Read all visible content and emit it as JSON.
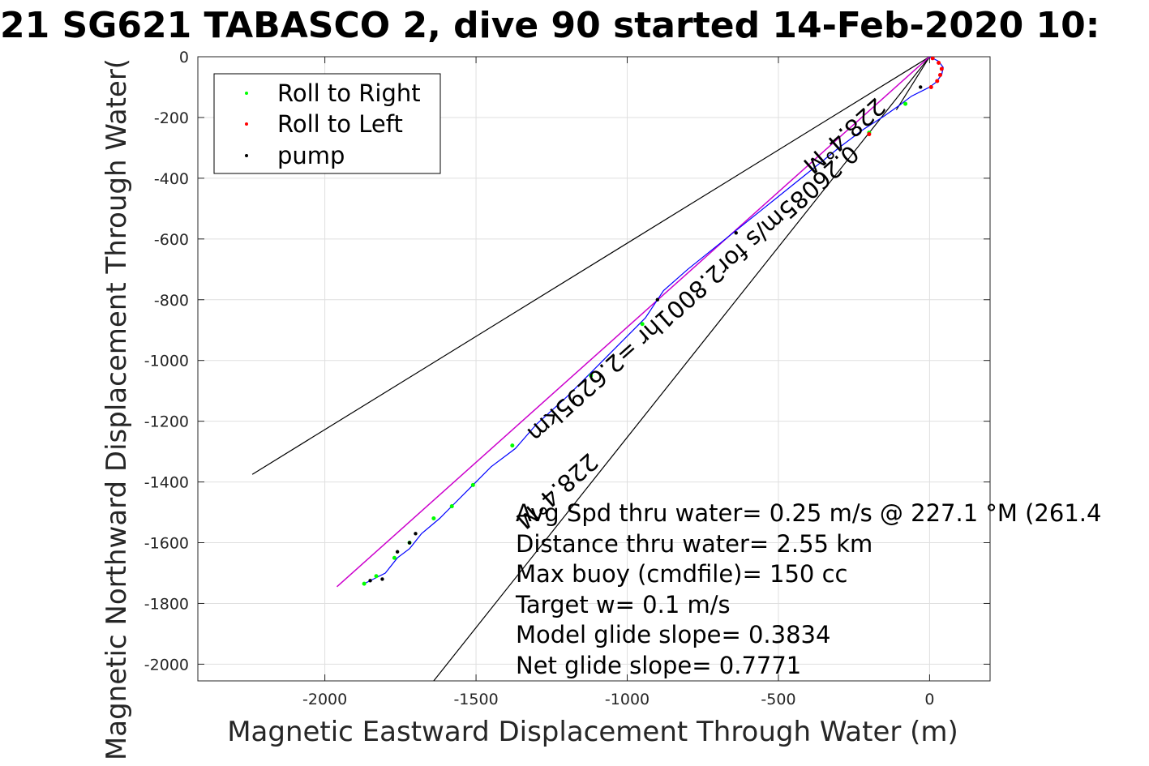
{
  "chart_data": {
    "type": "line",
    "title": "21 SG621 TABASCO 2, dive 90 started 14-Feb-2020 10:",
    "xlabel": "Magnetic Eastward Displacement Through Water (m)",
    "ylabel": "Magnetic Northward Displacement Through Water(",
    "xlim": [
      -2420,
      200
    ],
    "ylim": [
      -2055,
      0
    ],
    "xticks": [
      -2000,
      -1500,
      -1000,
      -500,
      0
    ],
    "yticks": [
      0,
      -200,
      -400,
      -600,
      -800,
      -1000,
      -1200,
      -1400,
      -1600,
      -1800,
      -2000
    ],
    "grid": true,
    "legend": {
      "placement": "top-left",
      "entries": [
        {
          "label": "Roll to Right",
          "color": "#00ff00"
        },
        {
          "label": "Roll to Left",
          "color": "#ff0000"
        },
        {
          "label": "pump",
          "color": "#000000"
        }
      ]
    },
    "track": {
      "color": "#0000ff",
      "points": [
        [
          0,
          0
        ],
        [
          30,
          -15
        ],
        [
          45,
          -35
        ],
        [
          40,
          -60
        ],
        [
          20,
          -85
        ],
        [
          0,
          -100
        ],
        [
          -60,
          -130
        ],
        [
          -100,
          -160
        ],
        [
          -150,
          -195
        ],
        [
          -220,
          -240
        ],
        [
          -300,
          -300
        ],
        [
          -400,
          -380
        ],
        [
          -500,
          -460
        ],
        [
          -600,
          -540
        ],
        [
          -700,
          -620
        ],
        [
          -800,
          -700
        ],
        [
          -880,
          -770
        ],
        [
          -940,
          -860
        ],
        [
          -1000,
          -920
        ],
        [
          -1100,
          -1020
        ],
        [
          -1200,
          -1120
        ],
        [
          -1300,
          -1210
        ],
        [
          -1370,
          -1290
        ],
        [
          -1450,
          -1350
        ],
        [
          -1520,
          -1420
        ],
        [
          -1580,
          -1480
        ],
        [
          -1620,
          -1520
        ],
        [
          -1680,
          -1570
        ],
        [
          -1720,
          -1620
        ],
        [
          -1760,
          -1650
        ],
        [
          -1800,
          -1700
        ],
        [
          -1840,
          -1720
        ],
        [
          -1870,
          -1735
        ]
      ]
    },
    "roll_right": [
      [
        -80,
        -155
      ],
      [
        -200,
        -250
      ],
      [
        -950,
        -880
      ],
      [
        -1120,
        -1050
      ],
      [
        -1380,
        -1280
      ],
      [
        -1510,
        -1410
      ],
      [
        -1580,
        -1480
      ],
      [
        -1640,
        -1520
      ],
      [
        -1720,
        -1600
      ],
      [
        -1770,
        -1650
      ],
      [
        -1830,
        -1710
      ],
      [
        -1870,
        -1735
      ]
    ],
    "roll_left": [
      [
        10,
        -5
      ],
      [
        30,
        -20
      ],
      [
        40,
        -40
      ],
      [
        35,
        -60
      ],
      [
        25,
        -80
      ],
      [
        5,
        -100
      ],
      [
        -200,
        -255
      ]
    ],
    "pump": [
      [
        -30,
        -100
      ],
      [
        -640,
        -580
      ],
      [
        -900,
        -800
      ],
      [
        -1700,
        -1570
      ],
      [
        -1720,
        -1600
      ],
      [
        -1760,
        -1630
      ],
      [
        -1810,
        -1720
      ],
      [
        -1850,
        -1725
      ]
    ],
    "model_track": {
      "color": "#cc00cc",
      "from": [
        0,
        0
      ],
      "to": [
        -1960,
        -1745
      ]
    },
    "bounding_lines": [
      {
        "from": [
          0,
          0
        ],
        "to": [
          -2240,
          -1375
        ]
      },
      {
        "from": [
          0,
          0
        ],
        "to": [
          -1640,
          -2055
        ]
      },
      {
        "from": [
          0,
          0
        ],
        "to": [
          -110,
          -175
        ]
      }
    ],
    "rotated_labels": [
      {
        "text": "228.4°M",
        "anchor": [
          -1250,
          -1410
        ],
        "angle": 138.4
      },
      {
        "text": "0.26085m/s for2.8001hr =2.6295km",
        "anchor": [
          -800,
          -760
        ],
        "angle": 138.4
      },
      {
        "text": "228.4°M",
        "anchor": [
          -300,
          -240
        ],
        "angle": 138.4
      }
    ],
    "annotations": [
      "Avg Spd thru water=  0.25 m/s @ 227.1 °M (261.4",
      "Distance thru water=  2.55 km",
      "Max buoy (cmdfile)= 150 cc",
      "Target w= 0.1 m/s",
      "Model glide slope= 0.3834",
      "Net glide slope= 0.7771"
    ]
  }
}
